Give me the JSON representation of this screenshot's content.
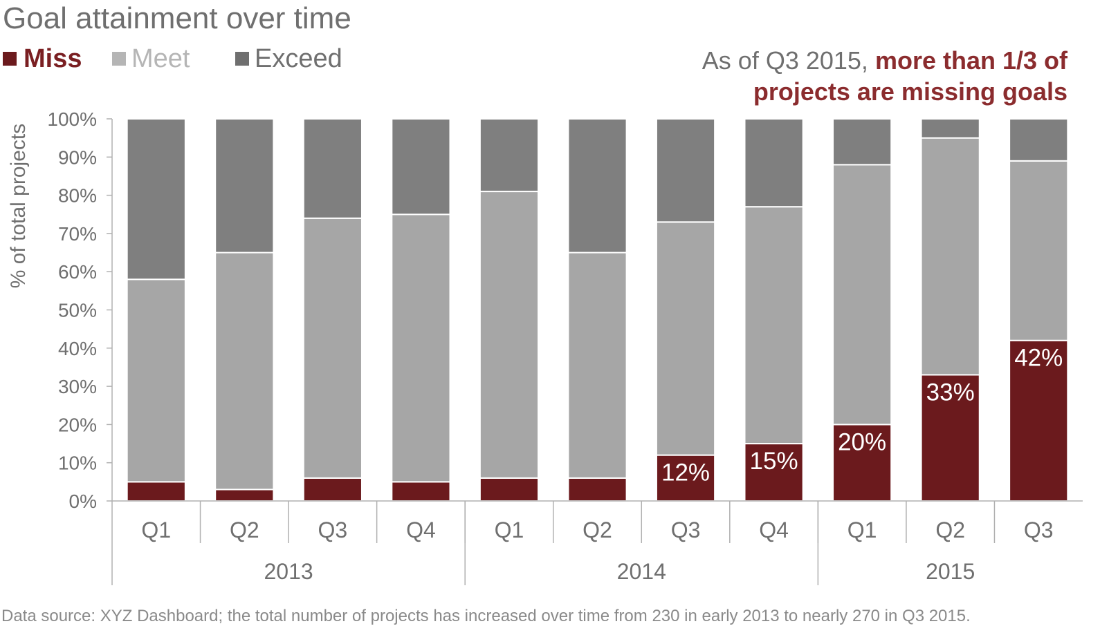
{
  "chart_data": {
    "type": "bar",
    "stacked": true,
    "title": "Goal attainment over time",
    "callout": {
      "prefix": "As of Q3 2015, ",
      "highlight_line1": "more than 1/3 of",
      "highlight_line2": "projects are missing goals"
    },
    "ylabel": "% of total projects",
    "ylim": [
      0,
      100
    ],
    "yticks": [
      "0%",
      "10%",
      "20%",
      "30%",
      "40%",
      "50%",
      "60%",
      "70%",
      "80%",
      "90%",
      "100%"
    ],
    "categories": [
      "Q1",
      "Q2",
      "Q3",
      "Q4",
      "Q1",
      "Q2",
      "Q3",
      "Q4",
      "Q1",
      "Q2",
      "Q3"
    ],
    "groups": [
      {
        "label": "2013",
        "count": 4
      },
      {
        "label": "2014",
        "count": 4
      },
      {
        "label": "2015",
        "count": 3
      }
    ],
    "series": [
      {
        "name": "Miss",
        "color": "#6b1a1d",
        "values": [
          5,
          3,
          6,
          5,
          6,
          6,
          12,
          15,
          20,
          33,
          42
        ]
      },
      {
        "name": "Meet",
        "color": "#a6a6a6",
        "values": [
          53,
          62,
          68,
          70,
          75,
          59,
          61,
          62,
          68,
          62,
          47
        ]
      },
      {
        "name": "Exceed",
        "color": "#7f7f7f",
        "values": [
          42,
          35,
          26,
          25,
          19,
          35,
          27,
          23,
          12,
          5,
          11
        ]
      }
    ],
    "data_labels": [
      "",
      "",
      "",
      "",
      "",
      "",
      "12%",
      "15%",
      "20%",
      "33%",
      "42%"
    ],
    "legend": {
      "position": "top-left"
    },
    "grid": false,
    "source": "Data source: XYZ Dashboard; the total number of projects has increased over time from 230 in early 2013 to nearly 270 in Q3 2015."
  },
  "colors": {
    "miss_text": "#7a1f22",
    "meet_text": "#b5b5b5",
    "exceed_text": "#6f6f6f",
    "callout_gray": "#6f6f6f",
    "callout_red": "#8b2c2e",
    "axis": "#b0b0b0"
  }
}
